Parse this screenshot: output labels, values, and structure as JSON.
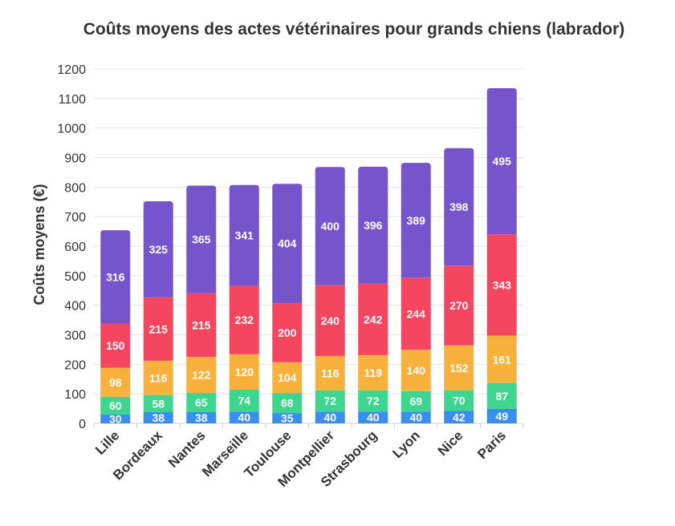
{
  "chart_data": {
    "type": "bar",
    "stacked": true,
    "title": "Coûts moyens des actes vétérinaires pour grands chiens (labrador)",
    "xlabel": "",
    "ylabel": "Coûts moyens (€)",
    "ylim": [
      0,
      1200
    ],
    "yticks": [
      0,
      100,
      200,
      300,
      400,
      500,
      600,
      700,
      800,
      900,
      1000,
      1100,
      1200
    ],
    "grid": true,
    "legend": "none",
    "categories": [
      "Lille",
      "Bordeaux",
      "Nantes",
      "Marseille",
      "Toulouse",
      "Montpellier",
      "Strasbourg",
      "Lyon",
      "Nice",
      "Paris"
    ],
    "series": [
      {
        "color": "#3a8fee",
        "values": [
          30,
          38,
          38,
          40,
          35,
          40,
          40,
          40,
          42,
          49
        ]
      },
      {
        "color": "#3ed68e",
        "values": [
          60,
          58,
          65,
          74,
          68,
          72,
          72,
          69,
          70,
          87
        ]
      },
      {
        "color": "#f7b13c",
        "values": [
          98,
          116,
          122,
          120,
          104,
          116,
          119,
          140,
          152,
          161
        ]
      },
      {
        "color": "#f5465f",
        "values": [
          150,
          215,
          215,
          232,
          200,
          240,
          242,
          244,
          270,
          343
        ]
      },
      {
        "color": "#7655cc",
        "values": [
          316,
          325,
          365,
          341,
          404,
          400,
          396,
          389,
          398,
          495
        ]
      }
    ]
  }
}
